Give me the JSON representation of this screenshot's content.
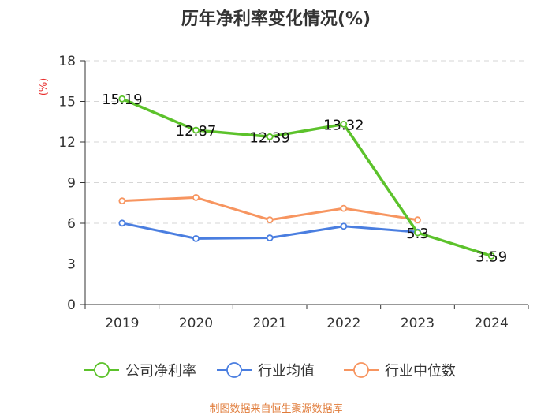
{
  "chart_data": {
    "type": "line",
    "title": "历年净利率变化情况(%)",
    "ylabel": "(%)",
    "xlabel": "",
    "categories": [
      "2019",
      "2020",
      "2021",
      "2022",
      "2023",
      "2024"
    ],
    "ylim": [
      0,
      18
    ],
    "yticks": [
      0,
      3,
      6,
      9,
      12,
      15,
      18
    ],
    "grid": true,
    "legend_position": "bottom",
    "series": [
      {
        "name": "公司净利率",
        "color": "#5cc22b",
        "values": [
          15.19,
          12.87,
          12.39,
          13.32,
          5.3,
          3.59
        ],
        "labels": [
          "15.19",
          "12.87",
          "12.39",
          "13.32",
          "5.3",
          "3.59"
        ]
      },
      {
        "name": "行业均值",
        "color": "#4a7ee0",
        "values": [
          6.01,
          4.87,
          4.92,
          5.78,
          5.35,
          null
        ]
      },
      {
        "name": "行业中位数",
        "color": "#f79560",
        "values": [
          7.65,
          7.9,
          6.25,
          7.1,
          6.25,
          null
        ]
      }
    ]
  },
  "source": "制图数据来自恒生聚源数据库"
}
